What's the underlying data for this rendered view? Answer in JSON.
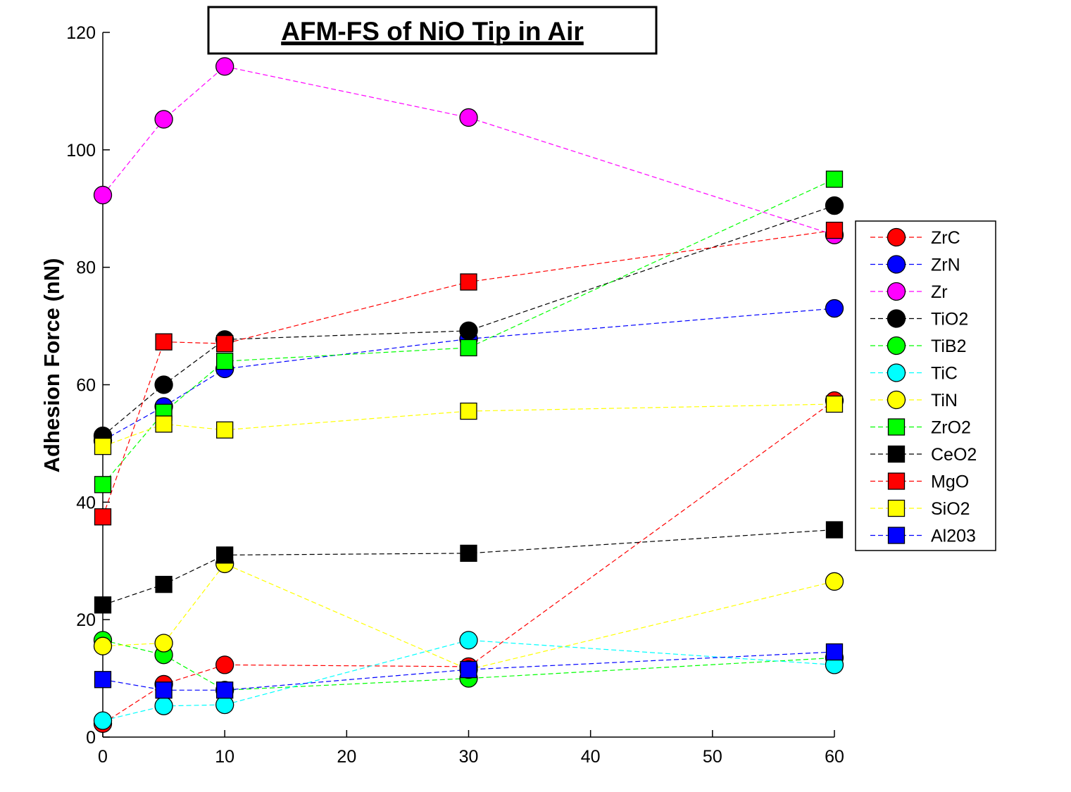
{
  "chart_data": {
    "type": "line",
    "title": "AFM-FS of NiO Tip in Air",
    "xlabel": "",
    "ylabel": "Adhesion Force (nN)",
    "xlim": [
      0,
      60
    ],
    "ylim": [
      0,
      120
    ],
    "xticks": [
      0,
      10,
      20,
      30,
      40,
      50,
      60
    ],
    "yticks": [
      0,
      20,
      40,
      60,
      80,
      100,
      120
    ],
    "x": [
      0,
      5,
      10,
      30,
      60
    ],
    "grid": false,
    "legend_position": "right",
    "series": [
      {
        "name": "ZrC",
        "color": "#ff0000",
        "marker": "circle",
        "values": [
          2.3,
          9.0,
          12.3,
          12.0,
          57.3
        ]
      },
      {
        "name": "ZrN",
        "color": "#0000ff",
        "marker": "circle",
        "values": [
          50.5,
          56.3,
          62.7,
          67.8,
          73.0
        ]
      },
      {
        "name": "Zr",
        "color": "#ff00ff",
        "marker": "circle",
        "values": [
          92.3,
          105.2,
          114.2,
          105.5,
          85.5
        ]
      },
      {
        "name": "TiO2",
        "color": "#000000",
        "marker": "circle",
        "values": [
          51.3,
          60.0,
          67.7,
          69.2,
          90.5
        ]
      },
      {
        "name": "TiB2",
        "color": "#00ff00",
        "marker": "circle",
        "values": [
          16.5,
          14.0,
          8.0,
          10.0,
          13.5
        ]
      },
      {
        "name": "TiC",
        "color": "#00ffff",
        "marker": "circle",
        "values": [
          2.8,
          5.3,
          5.5,
          16.5,
          12.3
        ]
      },
      {
        "name": "TiN",
        "color": "#ffff00",
        "marker": "circle",
        "values": [
          15.5,
          16.0,
          29.5,
          11.5,
          26.5
        ]
      },
      {
        "name": "ZrO2",
        "color": "#00ff00",
        "marker": "square",
        "values": [
          43.0,
          55.3,
          64.0,
          66.3,
          95.0
        ]
      },
      {
        "name": "CeO2",
        "color": "#000000",
        "marker": "square",
        "values": [
          22.5,
          26.0,
          31.0,
          31.3,
          35.3
        ]
      },
      {
        "name": "MgO",
        "color": "#ff0000",
        "marker": "square",
        "values": [
          37.5,
          67.3,
          67.0,
          77.5,
          86.3
        ]
      },
      {
        "name": "SiO2",
        "color": "#ffff00",
        "marker": "square",
        "values": [
          49.5,
          53.3,
          52.3,
          55.5,
          56.7
        ]
      },
      {
        "name": "Al203",
        "color": "#0000ff",
        "marker": "square",
        "values": [
          9.8,
          8.0,
          8.0,
          11.5,
          14.5
        ]
      }
    ]
  }
}
